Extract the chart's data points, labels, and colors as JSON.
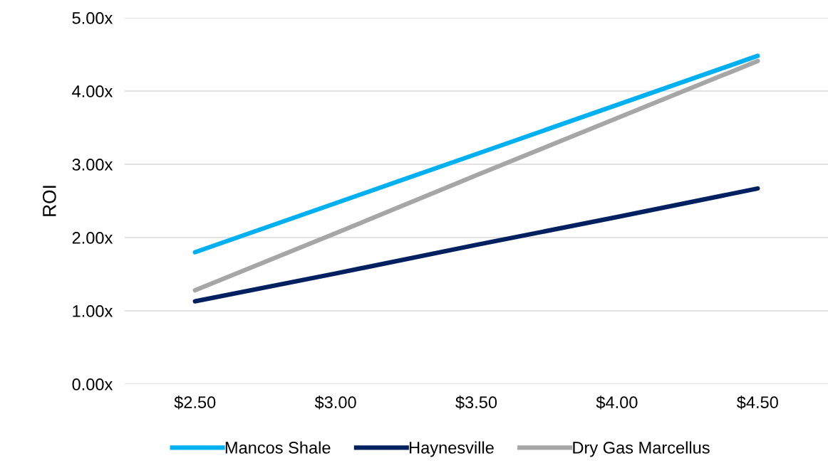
{
  "chart_data": {
    "type": "line",
    "ylabel": "ROI",
    "categories": [
      "$2.50",
      "$3.00",
      "$3.50",
      "$4.00",
      "$4.50"
    ],
    "series": [
      {
        "name": "Mancos Shale",
        "color": "#00b0f0",
        "values": [
          1.8,
          2.47,
          3.14,
          3.81,
          4.48
        ]
      },
      {
        "name": "Haynesville",
        "color": "#002060",
        "values": [
          1.13,
          1.51,
          1.9,
          2.28,
          2.67
        ]
      },
      {
        "name": "Dry Gas Marcellus",
        "color": "#a6a6a6",
        "values": [
          1.28,
          2.06,
          2.85,
          3.63,
          4.41
        ]
      }
    ],
    "ylim": [
      0,
      5
    ],
    "yticks": [
      {
        "value": 0,
        "label": "0.00x"
      },
      {
        "value": 1,
        "label": "1.00x"
      },
      {
        "value": 2,
        "label": "2.00x"
      },
      {
        "value": 3,
        "label": "3.00x"
      },
      {
        "value": 4,
        "label": "4.00x"
      },
      {
        "value": 5,
        "label": "5.00x"
      }
    ],
    "grid": "y",
    "legend": "bottom",
    "marker": "none",
    "line_style": "solid"
  }
}
